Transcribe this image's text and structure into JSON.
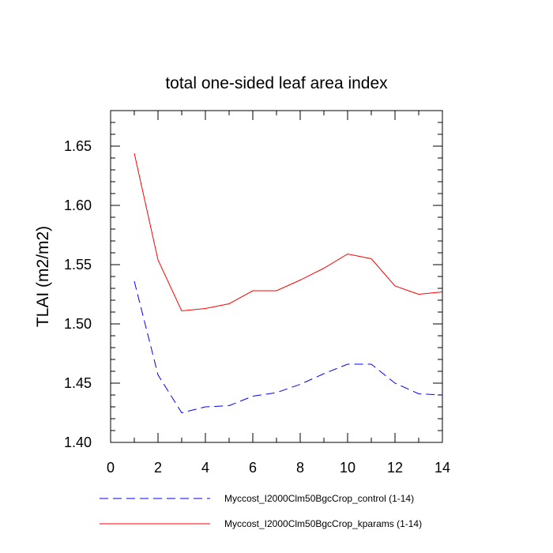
{
  "chart_data": {
    "type": "line",
    "title": "total one-sided leaf area index",
    "ylabel": "TLAI  (m2/m2)",
    "xlabel": "",
    "xlim": [
      0,
      14
    ],
    "ylim": [
      1.4,
      1.68
    ],
    "xticks": [
      0,
      2,
      4,
      6,
      8,
      10,
      12,
      14
    ],
    "yticks": [
      1.4,
      1.45,
      1.5,
      1.55,
      1.6,
      1.65
    ],
    "ytick_labels": [
      "1.40",
      "1.45",
      "1.50",
      "1.55",
      "1.60",
      "1.65"
    ],
    "legend_position": "bottom",
    "series": [
      {
        "name": "Myccost_I2000Clm50BgcCrop_control (1-14)",
        "style": "dashed",
        "color": "#0000ff",
        "x": [
          1,
          2,
          3,
          4,
          5,
          6,
          7,
          8,
          9,
          10,
          11,
          12,
          13,
          14
        ],
        "values": [
          1.536,
          1.457,
          1.425,
          1.43,
          1.431,
          1.439,
          1.442,
          1.449,
          1.458,
          1.466,
          1.466,
          1.45,
          1.441,
          1.44
        ]
      },
      {
        "name": "Myccost_I2000Clm50BgcCrop_kparams (1-14)",
        "style": "solid",
        "color": "#ff0000",
        "x": [
          1,
          2,
          3,
          4,
          5,
          6,
          7,
          8,
          9,
          10,
          11,
          12,
          13,
          14
        ],
        "values": [
          1.644,
          1.554,
          1.511,
          1.513,
          1.517,
          1.528,
          1.528,
          1.537,
          1.547,
          1.559,
          1.555,
          1.532,
          1.525,
          1.527
        ]
      }
    ]
  }
}
